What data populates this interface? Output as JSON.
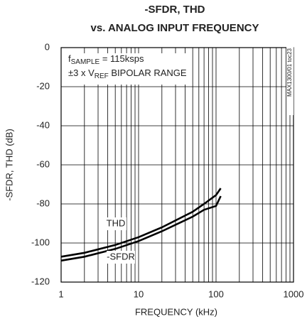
{
  "chart_data": {
    "type": "line",
    "title": "-SFDR, THD",
    "subtitle": "vs. ANALOG INPUT FREQUENCY",
    "xlabel": "FREQUENCY (kHz)",
    "ylabel": "-SFDR, THD (dB)",
    "annotations": [
      [
        "f",
        "SAMPLE",
        " = 115ksps"
      ],
      [
        "±3 x V",
        "REF",
        " BIPOLAR RANGE"
      ]
    ],
    "side_note": "MAX1300/01 toc23",
    "x": [
      1,
      2,
      5,
      10,
      20,
      50,
      70,
      100,
      115
    ],
    "series": [
      {
        "name": "THD",
        "color": "#000000",
        "values": [
          -107,
          -105,
          -101,
          -97,
          -92,
          -84,
          -80,
          -75.5,
          -72
        ]
      },
      {
        "name": "-SFDR",
        "color": "#000000",
        "values": [
          -109,
          -107,
          -103,
          -99,
          -94,
          -86.5,
          -83,
          -81,
          -76
        ]
      }
    ],
    "xscale": "log",
    "xlim": [
      1,
      1000
    ],
    "xticks": [
      1,
      10,
      100,
      1000
    ],
    "ylim": [
      -120,
      0
    ],
    "yticks": [
      0,
      -20,
      -40,
      -60,
      -80,
      -100,
      -120
    ],
    "grid": true
  }
}
